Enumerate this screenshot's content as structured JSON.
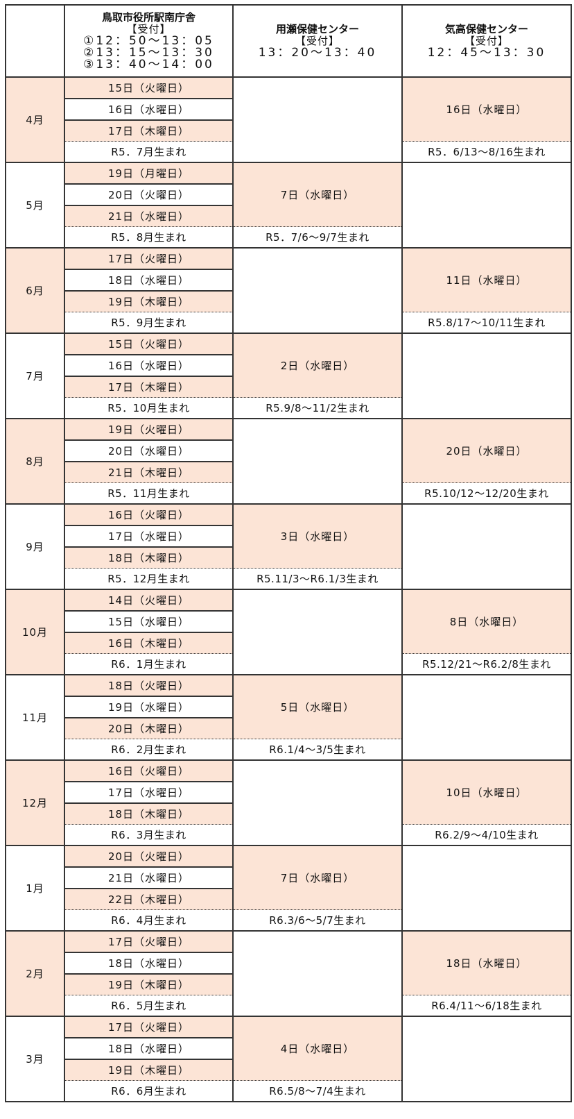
{
  "header": {
    "month_col": "",
    "col1": {
      "title": "鳥取市役所駅南庁舎",
      "label": "【受付】",
      "times": [
        "①12：50～13：05",
        "②13：15～13：30",
        "③13：40～14：00"
      ]
    },
    "col2": {
      "title": "用瀬保健センター",
      "label": "【受付】",
      "times": [
        "13：20～13：40"
      ]
    },
    "col3": {
      "title": "気高保健センター",
      "label": "【受付】",
      "times": [
        "12：45～13：30"
      ]
    }
  },
  "colors": {
    "shade": "#fce4d6",
    "border": "#333333"
  },
  "months": [
    {
      "month": "4月",
      "shaded": true,
      "col1": {
        "dates": [
          "15日（火曜日）",
          "16日（水曜日）",
          "17日（木曜日）"
        ],
        "birth": "R5．7月生まれ"
      },
      "col2": null,
      "col3": {
        "date": "16日（水曜日）",
        "birth": "R5．6/13～8/16生まれ"
      }
    },
    {
      "month": "5月",
      "shaded": false,
      "col1": {
        "dates": [
          "19日（月曜日）",
          "20日（火曜日）",
          "21日（水曜日）"
        ],
        "birth": "R5．8月生まれ"
      },
      "col2": {
        "date": "7日（水曜日）",
        "birth": "R5．7/6～9/7生まれ"
      },
      "col3": null
    },
    {
      "month": "6月",
      "shaded": true,
      "col1": {
        "dates": [
          "17日（火曜日）",
          "18日（水曜日）",
          "19日（木曜日）"
        ],
        "birth": "R5．9月生まれ"
      },
      "col2": null,
      "col3": {
        "date": "11日（水曜日）",
        "birth": "R5.8/17～10/11生まれ"
      }
    },
    {
      "month": "7月",
      "shaded": false,
      "col1": {
        "dates": [
          "15日（火曜日）",
          "16日（水曜日）",
          "17日（木曜日）"
        ],
        "birth": "R5．10月生まれ"
      },
      "col2": {
        "date": "2日（水曜日）",
        "birth": "R5.9/8～11/2生まれ"
      },
      "col3": null
    },
    {
      "month": "8月",
      "shaded": true,
      "col1": {
        "dates": [
          "19日（火曜日）",
          "20日（水曜日）",
          "21日（木曜日）"
        ],
        "birth": "R5．11月生まれ"
      },
      "col2": null,
      "col3": {
        "date": "20日（水曜日）",
        "birth": "R5.10/12～12/20生まれ"
      }
    },
    {
      "month": "9月",
      "shaded": false,
      "col1": {
        "dates": [
          "16日（火曜日）",
          "17日（水曜日）",
          "18日（木曜日）"
        ],
        "birth": "R5．12月生まれ"
      },
      "col2": {
        "date": "3日（水曜日）",
        "birth": "R5.11/3～R6.1/3生まれ"
      },
      "col3": null
    },
    {
      "month": "10月",
      "shaded": true,
      "col1": {
        "dates": [
          "14日（火曜日）",
          "15日（水曜日）",
          "16日（木曜日）"
        ],
        "birth": "R6．1月生まれ"
      },
      "col2": null,
      "col3": {
        "date": "8日（水曜日）",
        "birth": "R5.12/21～R6.2/8生まれ"
      }
    },
    {
      "month": "11月",
      "shaded": false,
      "col1": {
        "dates": [
          "18日（火曜日）",
          "19日（水曜日）",
          "20日（木曜日）"
        ],
        "birth": "R6．2月生まれ"
      },
      "col2": {
        "date": "5日（水曜日）",
        "birth": "R6.1/4～3/5生まれ"
      },
      "col3": null
    },
    {
      "month": "12月",
      "shaded": true,
      "col1": {
        "dates": [
          "16日（火曜日）",
          "17日（水曜日）",
          "18日（木曜日）"
        ],
        "birth": "R6．3月生まれ"
      },
      "col2": null,
      "col3": {
        "date": "10日（水曜日）",
        "birth": "R6.2/9～4/10生まれ"
      }
    },
    {
      "month": "1月",
      "shaded": false,
      "col1": {
        "dates": [
          "20日（火曜日）",
          "21日（水曜日）",
          "22日（木曜日）"
        ],
        "birth": "R6．4月生まれ"
      },
      "col2": {
        "date": "7日（水曜日）",
        "birth": "R6.3/6～5/7生まれ"
      },
      "col3": null
    },
    {
      "month": "2月",
      "shaded": true,
      "col1": {
        "dates": [
          "17日（火曜日）",
          "18日（水曜日）",
          "19日（木曜日）"
        ],
        "birth": "R6．5月生まれ"
      },
      "col2": null,
      "col3": {
        "date": "18日（水曜日）",
        "birth": "R6.4/11～6/18生まれ"
      }
    },
    {
      "month": "3月",
      "shaded": false,
      "col1": {
        "dates": [
          "17日（火曜日）",
          "18日（水曜日）",
          "19日（木曜日）"
        ],
        "birth": "R6．6月生まれ"
      },
      "col2": {
        "date": "4日（水曜日）",
        "birth": "R6.5/8～7/4生まれ"
      },
      "col3": null
    }
  ]
}
